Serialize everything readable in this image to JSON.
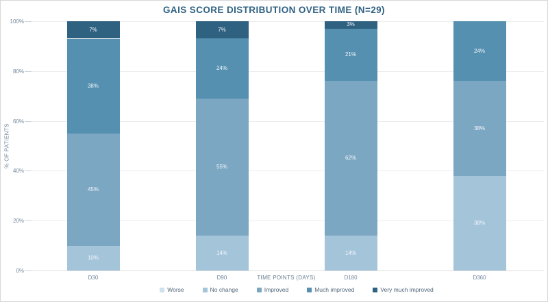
{
  "chart_data": {
    "type": "bar",
    "variant": "stacked-percent-column",
    "title": "GAIS SCORE DISTRIBUTION OVER TIME (N=29)",
    "xlabel": "TIME POINTS (DAYS)",
    "ylabel": "% OF PATIENTS",
    "categories": [
      "D30",
      "D90",
      "D180",
      "D360"
    ],
    "series": [
      {
        "name": "Worse",
        "color": "#d0e1ee",
        "values": [
          0,
          0,
          0,
          0
        ]
      },
      {
        "name": "No change",
        "color": "#a4c4da",
        "values": [
          10,
          14,
          14,
          38
        ]
      },
      {
        "name": "Improved",
        "color": "#7ca7c2",
        "values": [
          45,
          55,
          62,
          38
        ]
      },
      {
        "name": "Much improved",
        "color": "#5590b1",
        "values": [
          38,
          24,
          21,
          24
        ]
      },
      {
        "name": "Very much improved",
        "color": "#2f6181",
        "values": [
          7,
          7,
          3,
          0
        ]
      }
    ],
    "y_ticks": [
      0,
      20,
      40,
      60,
      80,
      100
    ],
    "ylim": [
      0,
      100
    ],
    "y_tick_format": "{v}%",
    "value_label_format": "{v}%",
    "grid": true,
    "legend_position": "bottom"
  },
  "colors": {
    "title": "#2f6182",
    "axis_text": "#72879b",
    "legend_text": "#4e6478",
    "gridline": "#ececec",
    "bar_value_label": "#f4f8fb"
  }
}
